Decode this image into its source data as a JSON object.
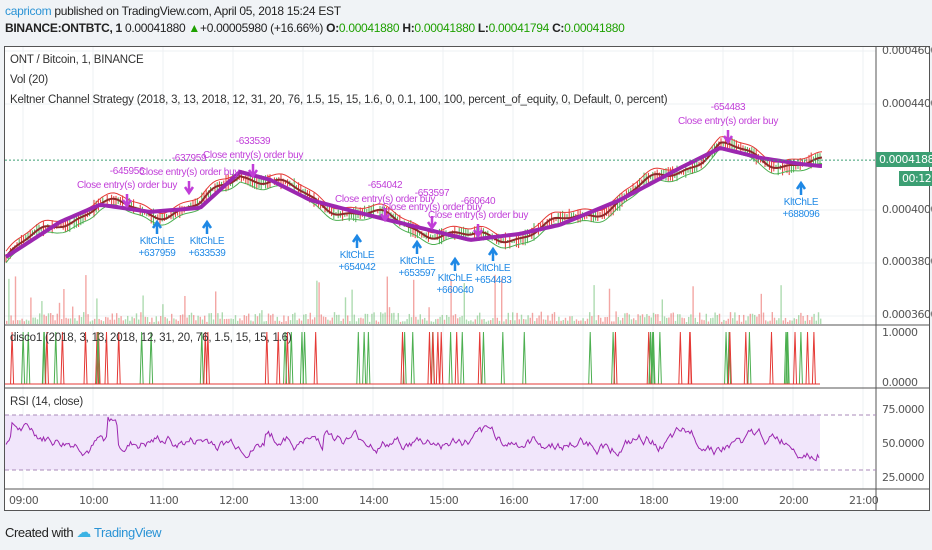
{
  "header": {
    "author": "capricom",
    "published": "published on TradingView.com, April 05, 2018 15:24 EST",
    "symbol": "BINANCE:ONTBTC, 1",
    "last": "0.00041880",
    "change": "+0.00005980 (+16.66%)",
    "o_label": "O:",
    "o": "0.00041880",
    "h_label": "H:",
    "h": "0.00041880",
    "l_label": "L:",
    "l": "0.00041794",
    "c_label": "C:",
    "c": "0.00041880"
  },
  "legend": {
    "main": "ONT / Bitcoin, 1, BINANCE",
    "vol": "Vol (20)",
    "strategy": "Keltner Channel Strategy (2018, 3, 13, 2018, 12, 31, 20, 76, 1.5, 15, 15, 1.6, 0, 0.1, 100, 100, percent_of_equity, 0, Default, 0, percent)",
    "disco": "disco1 (2018, 3, 13, 2018, 12, 31, 20, 76, 1.5, 15, 15, 1.6)",
    "rsi": "RSI (14, close)"
  },
  "price_axis": [
    "0.00046000",
    "0.00044000",
    "0.00040000",
    "0.00038000",
    "0.00036000"
  ],
  "price_tag": "0.00041880",
  "countdown": "00:12",
  "disco_axis": [
    "1.0000",
    "0.0000"
  ],
  "rsi_axis": [
    "75.0000",
    "50.0000",
    "25.0000"
  ],
  "time_axis": [
    "09:00",
    "10:00",
    "11:00",
    "12:00",
    "13:00",
    "14:00",
    "15:00",
    "16:00",
    "17:00",
    "18:00",
    "19:00",
    "20:00",
    "21:00"
  ],
  "close_text": "Close entry(s) order buy",
  "long_text": "KltChLE",
  "closes": [
    "-645956",
    "-637959",
    "-633539",
    "-654042",
    "-653597",
    "-660640",
    "-654483"
  ],
  "longs": [
    "+637959",
    "+633539",
    "+654042",
    "+653597",
    "+660640",
    "+654483",
    "+688096"
  ],
  "ma_series": {
    "hours": [
      8.74,
      9.53,
      10.1,
      10.81,
      11.53,
      12.1,
      12.53,
      13.1,
      13.81,
      14.67,
      15.39,
      16.1,
      16.67,
      17.53,
      18.39,
      18.96,
      19.53,
      20.1,
      20.39
    ],
    "price": [
      0.000382,
      0.0003955,
      0.000402,
      0.0003993,
      0.0004008,
      0.0004144,
      0.0004114,
      0.0004038,
      0.0003989,
      0.0003933,
      0.0003887,
      0.000391,
      0.0003944,
      0.0004038,
      0.0004159,
      0.0004234,
      0.0004197,
      0.0004174,
      0.0004166
    ]
  },
  "colors": {
    "ma": "#9c27b0",
    "up": "#4caf50",
    "down": "#e53935",
    "rsi": "#9c27b0",
    "accent": "#2a93d5"
  },
  "footer": {
    "created": "Created with",
    "brand": "TradingView"
  }
}
